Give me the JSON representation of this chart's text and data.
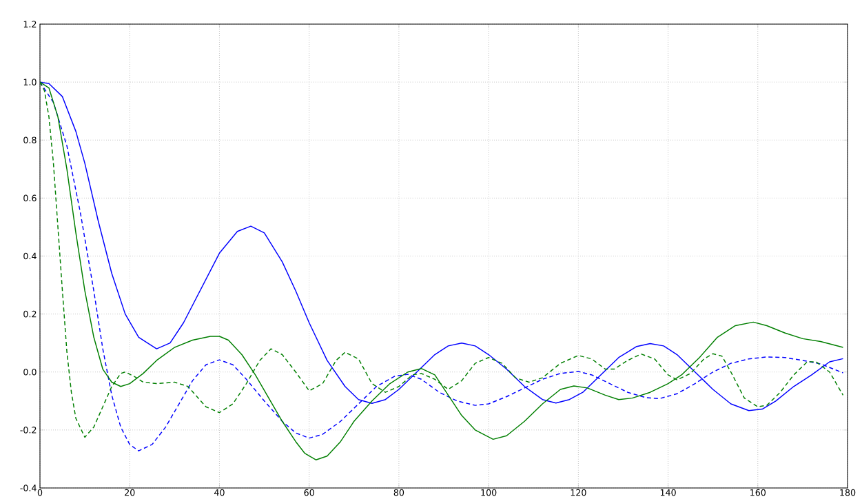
{
  "chart_data": {
    "type": "line",
    "xlim": [
      0,
      180
    ],
    "ylim": [
      -0.4,
      1.2
    ],
    "xticks": [
      0,
      20,
      40,
      60,
      80,
      100,
      120,
      140,
      160,
      180
    ],
    "yticks": [
      -0.4,
      -0.2,
      {
        "value": 0,
        "label": "0.0"
      },
      0.2,
      0.4,
      0.6,
      0.8,
      {
        "value": 1,
        "label": "1.0"
      },
      1.2
    ],
    "grid": true,
    "series": [
      {
        "color": "#0000ff",
        "line_style": "solid",
        "x": [
          0,
          2,
          5,
          8,
          10,
          13,
          16,
          19,
          22,
          26,
          29,
          32,
          36,
          40,
          44,
          47,
          50,
          54,
          57,
          60,
          64,
          68,
          71,
          74,
          77,
          80,
          84,
          88,
          91,
          94,
          97,
          100,
          104,
          108,
          112,
          115,
          118,
          121,
          125,
          129,
          133,
          136,
          139,
          142,
          146,
          150,
          154,
          158,
          161,
          164,
          168,
          172,
          176,
          179
        ],
        "values": [
          1.0,
          0.995,
          0.95,
          0.83,
          0.72,
          0.52,
          0.34,
          0.2,
          0.12,
          0.08,
          0.1,
          0.17,
          0.29,
          0.41,
          0.485,
          0.503,
          0.48,
          0.38,
          0.28,
          0.17,
          0.04,
          -0.05,
          -0.095,
          -0.108,
          -0.095,
          -0.06,
          0.0,
          0.06,
          0.09,
          0.1,
          0.09,
          0.06,
          0.01,
          -0.05,
          -0.095,
          -0.107,
          -0.095,
          -0.07,
          -0.01,
          0.05,
          0.088,
          0.098,
          0.09,
          0.06,
          0.0,
          -0.06,
          -0.11,
          -0.133,
          -0.128,
          -0.1,
          -0.05,
          -0.01,
          0.035,
          0.046
        ]
      },
      {
        "color": "#0000ff",
        "line_style": "dashed",
        "x": [
          0,
          3,
          6,
          9,
          12,
          14,
          16,
          18,
          20,
          22,
          25,
          28,
          31,
          34,
          37,
          40,
          43,
          46,
          50,
          54,
          57,
          60,
          63,
          67,
          71,
          75,
          79,
          82,
          85,
          89,
          93,
          97,
          100,
          104,
          108,
          112,
          116,
          120,
          123,
          127,
          131,
          135,
          138,
          142,
          146,
          150,
          154,
          158,
          162,
          166,
          170,
          174,
          179
        ],
        "values": [
          1.0,
          0.93,
          0.78,
          0.55,
          0.28,
          0.08,
          -0.08,
          -0.19,
          -0.25,
          -0.272,
          -0.25,
          -0.19,
          -0.11,
          -0.03,
          0.025,
          0.042,
          0.025,
          -0.025,
          -0.1,
          -0.17,
          -0.21,
          -0.228,
          -0.215,
          -0.17,
          -0.11,
          -0.05,
          -0.015,
          -0.008,
          -0.025,
          -0.07,
          -0.1,
          -0.115,
          -0.11,
          -0.085,
          -0.055,
          -0.025,
          -0.005,
          0.002,
          -0.01,
          -0.04,
          -0.07,
          -0.088,
          -0.092,
          -0.075,
          -0.04,
          0.0,
          0.03,
          0.045,
          0.052,
          0.05,
          0.04,
          0.028,
          -0.003
        ]
      },
      {
        "color": "#007f00",
        "line_style": "solid",
        "x": [
          0,
          2,
          4,
          6,
          8,
          10,
          12,
          14,
          16,
          18,
          20,
          23,
          26,
          30,
          34,
          38,
          40,
          42,
          45,
          48,
          51,
          54,
          57,
          59,
          61.5,
          64,
          67,
          70,
          74,
          78,
          82,
          85,
          88,
          91,
          94,
          97,
          101,
          104,
          108,
          112,
          116,
          119,
          122,
          126,
          129,
          132,
          136,
          140,
          143,
          147,
          151,
          155,
          159,
          162,
          166,
          170,
          174,
          179
        ],
        "values": [
          1.0,
          0.98,
          0.88,
          0.7,
          0.48,
          0.28,
          0.12,
          0.01,
          -0.035,
          -0.05,
          -0.04,
          -0.005,
          0.04,
          0.085,
          0.11,
          0.123,
          0.123,
          0.11,
          0.06,
          -0.01,
          -0.09,
          -0.17,
          -0.24,
          -0.28,
          -0.303,
          -0.29,
          -0.24,
          -0.17,
          -0.1,
          -0.04,
          0.0,
          0.012,
          -0.01,
          -0.08,
          -0.15,
          -0.2,
          -0.232,
          -0.22,
          -0.17,
          -0.11,
          -0.06,
          -0.048,
          -0.055,
          -0.08,
          -0.095,
          -0.09,
          -0.07,
          -0.04,
          -0.01,
          0.05,
          0.12,
          0.16,
          0.172,
          0.16,
          0.135,
          0.115,
          0.105,
          0.085
        ]
      },
      {
        "color": "#007f00",
        "line_style": "dashed",
        "x": [
          0,
          1,
          2,
          3,
          4,
          5,
          6,
          7,
          8,
          10,
          12,
          14,
          16,
          18,
          19,
          21,
          23,
          26,
          30,
          33,
          37,
          40,
          43,
          46,
          49,
          51.5,
          54,
          57,
          60,
          63,
          66,
          68,
          71,
          74,
          77,
          80,
          83,
          85,
          88,
          91,
          94,
          97,
          100,
          103,
          106,
          109,
          112,
          116,
          120,
          123,
          126,
          128,
          131,
          134,
          137,
          140,
          142,
          145,
          148,
          150,
          152,
          154,
          157,
          160,
          162,
          165,
          168,
          171,
          173,
          176,
          179
        ],
        "values": [
          1.0,
          0.97,
          0.88,
          0.72,
          0.5,
          0.28,
          0.07,
          -0.07,
          -0.16,
          -0.225,
          -0.19,
          -0.12,
          -0.05,
          -0.005,
          0.0,
          -0.015,
          -0.035,
          -0.04,
          -0.035,
          -0.05,
          -0.12,
          -0.14,
          -0.11,
          -0.04,
          0.04,
          0.08,
          0.06,
          0.0,
          -0.065,
          -0.04,
          0.04,
          0.068,
          0.045,
          -0.04,
          -0.07,
          -0.05,
          -0.01,
          -0.005,
          -0.025,
          -0.06,
          -0.03,
          0.03,
          0.05,
          0.03,
          -0.02,
          -0.035,
          -0.02,
          0.03,
          0.057,
          0.045,
          0.01,
          0.01,
          0.04,
          0.062,
          0.045,
          -0.01,
          -0.027,
          -0.005,
          0.045,
          0.063,
          0.055,
          0.0,
          -0.09,
          -0.12,
          -0.115,
          -0.07,
          -0.01,
          0.035,
          0.035,
          0.0,
          -0.08
        ]
      }
    ]
  }
}
